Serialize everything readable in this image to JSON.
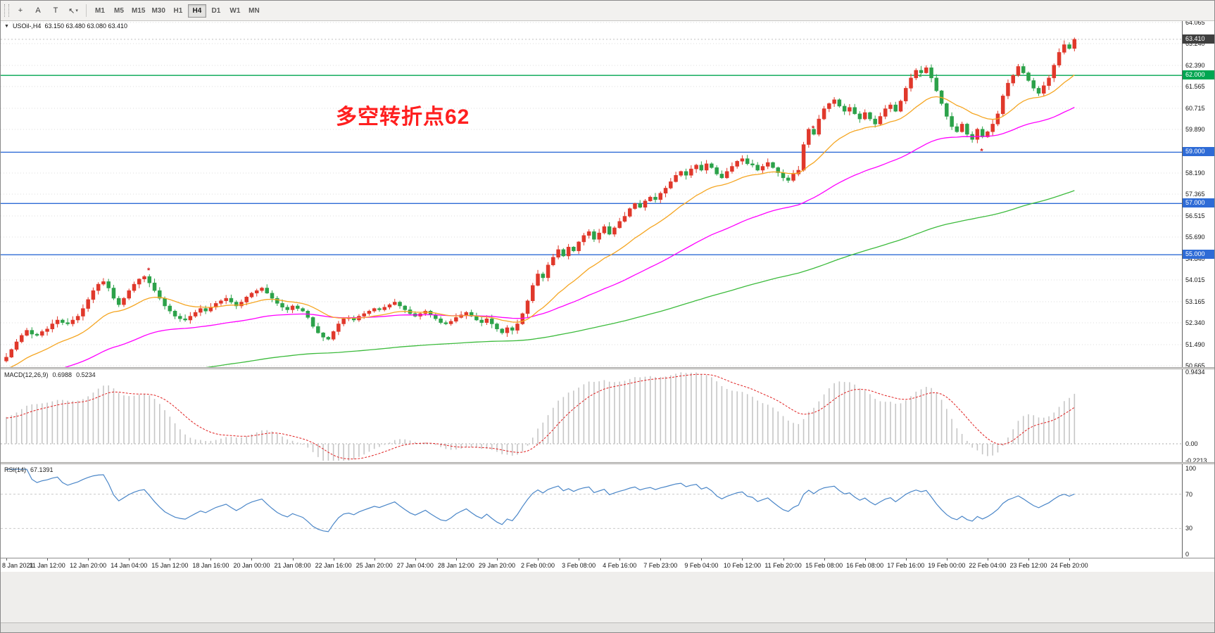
{
  "toolbar": {
    "tools": [
      {
        "name": "crosshair",
        "glyph": "+"
      },
      {
        "name": "text-label",
        "glyph": "A"
      },
      {
        "name": "text-tool",
        "glyph": "T"
      },
      {
        "name": "arrow-shapes",
        "glyph": "↖"
      }
    ],
    "timeframes": [
      "M1",
      "M5",
      "M15",
      "M30",
      "H1",
      "H4",
      "D1",
      "W1",
      "MN"
    ],
    "active_timeframe": "H4"
  },
  "chart": {
    "collapse_icon": "▼",
    "symbol_period": "USOil-,H4",
    "ohlc_text": "63.150 63.480 63.080 63.410",
    "annotation": {
      "text": "多空转折点62",
      "color": "#ff1f1f"
    },
    "price_axis": [
      64.065,
      63.24,
      62.39,
      61.565,
      60.715,
      59.89,
      58.19,
      57.365,
      56.515,
      55.69,
      54.84,
      54.015,
      53.165,
      52.34,
      51.49,
      50.665
    ],
    "current_price_badge": {
      "label": "63.410",
      "price": 63.41,
      "bg": "#3f3f3f"
    },
    "hlines": [
      {
        "price": 62.0,
        "label": "62.000",
        "color": "#00a651",
        "badge_bg": "#00a651"
      },
      {
        "price": 59.0,
        "label": "59.000",
        "color": "#2e6bd6",
        "badge_bg": "#2e6bd6"
      },
      {
        "price": 57.0,
        "label": "57.000",
        "color": "#2e6bd6",
        "badge_bg": "#2e6bd6"
      },
      {
        "price": 55.0,
        "label": "55.000",
        "color": "#2e6bd6",
        "badge_bg": "#2e6bd6"
      }
    ],
    "up_color": "#e0382b",
    "down_color": "#2ca24a",
    "ma_colors": {
      "fast": "#f5a623",
      "mid": "#ff00ff",
      "slow": "#3dbb3d"
    }
  },
  "macd_panel": {
    "name": "MACD(12,26,9)",
    "value_main": "0.6988",
    "value_signal": "0.5234",
    "axis": [
      0.9434,
      0,
      -0.2213
    ],
    "histogram_color": "#c6c6c6",
    "signal_color": "#e02020"
  },
  "rsi_panel": {
    "name": "RSI(14)",
    "value": "67.1391",
    "axis": [
      100,
      70,
      30,
      0
    ],
    "levels": [
      70,
      30
    ],
    "line_color": "#4a86c8"
  },
  "time_axis": [
    "8 Jan 2021",
    "11 Jan 12:00",
    "12 Jan 20:00",
    "14 Jan 04:00",
    "15 Jan 12:00",
    "18 Jan 16:00",
    "20 Jan 00:00",
    "21 Jan 08:00",
    "22 Jan 16:00",
    "25 Jan 20:00",
    "27 Jan 04:00",
    "28 Jan 12:00",
    "29 Jan 20:00",
    "2 Feb 00:00",
    "3 Feb 08:00",
    "4 Feb 16:00",
    "7 Feb 23:00",
    "9 Feb 04:00",
    "10 Feb 12:00",
    "11 Feb 20:00",
    "15 Feb 08:00",
    "16 Feb 08:00",
    "17 Feb 16:00",
    "19 Feb 00:00",
    "22 Feb 04:00",
    "23 Feb 12:00",
    "24 Feb 20:00"
  ],
  "chart_data": {
    "type": "candlestick",
    "symbol": "USOil",
    "timeframe": "H4",
    "y_range": [
      50.665,
      64.065
    ],
    "first_open": 50.85,
    "closes": [
      51.0,
      51.3,
      51.6,
      51.85,
      52.05,
      51.9,
      51.85,
      52.0,
      52.1,
      52.3,
      52.45,
      52.35,
      52.3,
      52.45,
      52.6,
      52.9,
      53.25,
      53.6,
      53.85,
      53.95,
      53.7,
      53.3,
      53.05,
      53.3,
      53.6,
      53.85,
      54.05,
      54.15,
      53.9,
      53.6,
      53.3,
      53.0,
      52.8,
      52.6,
      52.5,
      52.45,
      52.6,
      52.75,
      52.9,
      52.8,
      52.95,
      53.1,
      53.2,
      53.3,
      53.15,
      53.0,
      53.15,
      53.35,
      53.5,
      53.6,
      53.7,
      53.5,
      53.3,
      53.1,
      52.95,
      52.85,
      53.0,
      52.9,
      52.8,
      52.55,
      52.2,
      51.95,
      51.78,
      51.7,
      52.0,
      52.3,
      52.5,
      52.55,
      52.45,
      52.6,
      52.7,
      52.8,
      52.9,
      52.85,
      52.95,
      53.05,
      53.15,
      53.0,
      52.85,
      52.7,
      52.6,
      52.7,
      52.8,
      52.65,
      52.5,
      52.35,
      52.3,
      52.4,
      52.55,
      52.65,
      52.75,
      52.6,
      52.45,
      52.35,
      52.5,
      52.3,
      52.1,
      51.95,
      52.15,
      52.05,
      52.3,
      52.7,
      53.2,
      53.8,
      54.25,
      54.1,
      54.6,
      54.9,
      55.2,
      54.95,
      55.3,
      55.15,
      55.5,
      55.75,
      55.9,
      55.6,
      55.85,
      56.1,
      55.8,
      56.05,
      56.3,
      56.5,
      56.8,
      57.0,
      56.85,
      57.1,
      57.25,
      57.15,
      57.4,
      57.6,
      57.85,
      58.1,
      58.25,
      58.1,
      58.35,
      58.5,
      58.3,
      58.55,
      58.4,
      58.15,
      58.0,
      58.25,
      58.45,
      58.65,
      58.75,
      58.55,
      58.5,
      58.3,
      58.45,
      58.6,
      58.4,
      58.2,
      58.0,
      57.9,
      58.15,
      58.3,
      59.3,
      59.9,
      59.7,
      60.3,
      60.7,
      60.9,
      61.05,
      60.8,
      60.6,
      60.75,
      60.5,
      60.3,
      60.55,
      60.3,
      60.1,
      60.4,
      60.7,
      60.85,
      60.6,
      61.0,
      61.5,
      61.9,
      62.2,
      62.1,
      62.3,
      61.9,
      61.4,
      60.9,
      60.4,
      60.0,
      59.8,
      60.1,
      59.7,
      59.5,
      59.9,
      59.6,
      59.8,
      60.1,
      60.5,
      61.2,
      61.7,
      62.0,
      62.35,
      62.1,
      61.8,
      61.5,
      61.3,
      61.6,
      61.9,
      62.4,
      62.9,
      63.2,
      63.05,
      63.41
    ],
    "markers": [
      {
        "bar": 27,
        "price": 54.4,
        "color": "#d42020"
      },
      {
        "bar": 157,
        "price": 59.95,
        "color": "#d42020"
      },
      {
        "bar": 190,
        "price": 59.05,
        "color": "#d42020"
      },
      {
        "bar": 178,
        "price": 61.95,
        "color": "#2ca24a"
      }
    ],
    "indicators": {
      "macd": "12,26,9",
      "rsi": "14"
    }
  }
}
